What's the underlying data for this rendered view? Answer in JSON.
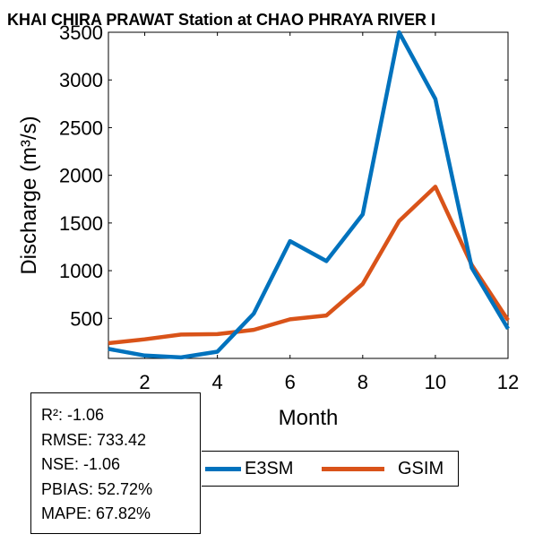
{
  "colors": {
    "e3sm": "#0072BD",
    "gsim": "#D95319",
    "axis": "#000000",
    "background": "#ffffff"
  },
  "chart_data": {
    "type": "line",
    "title": "KHAI CHIRA PRAWAT  Station at  CHAO PHRAYA RIVER  I",
    "xlabel": "Month",
    "ylabel": "Discharge (m³/s)",
    "xlim": [
      1,
      12
    ],
    "ylim": [
      80,
      3500
    ],
    "xticks": [
      2,
      4,
      6,
      8,
      10,
      12
    ],
    "yticks": [
      500,
      1000,
      1500,
      2000,
      2500,
      3000,
      3500
    ],
    "grid": false,
    "legend_position": "bottom",
    "x": [
      1,
      2,
      3,
      4,
      5,
      6,
      7,
      8,
      9,
      10,
      11,
      12
    ],
    "series": [
      {
        "name": "E3SM",
        "color": "#0072BD",
        "values": [
          180,
          110,
          90,
          150,
          550,
          1310,
          1100,
          1590,
          3500,
          2800,
          1030,
          390
        ]
      },
      {
        "name": "GSIM",
        "color": "#D95319",
        "values": [
          240,
          280,
          330,
          335,
          380,
          490,
          530,
          860,
          1520,
          1880,
          1060,
          480
        ]
      }
    ]
  },
  "stats": {
    "r2": "R²: -1.06",
    "rmse": "RMSE: 733.42",
    "nse": "NSE: -1.06",
    "pbias": "PBIAS: 52.72%",
    "mape": "MAPE: 67.82%"
  }
}
